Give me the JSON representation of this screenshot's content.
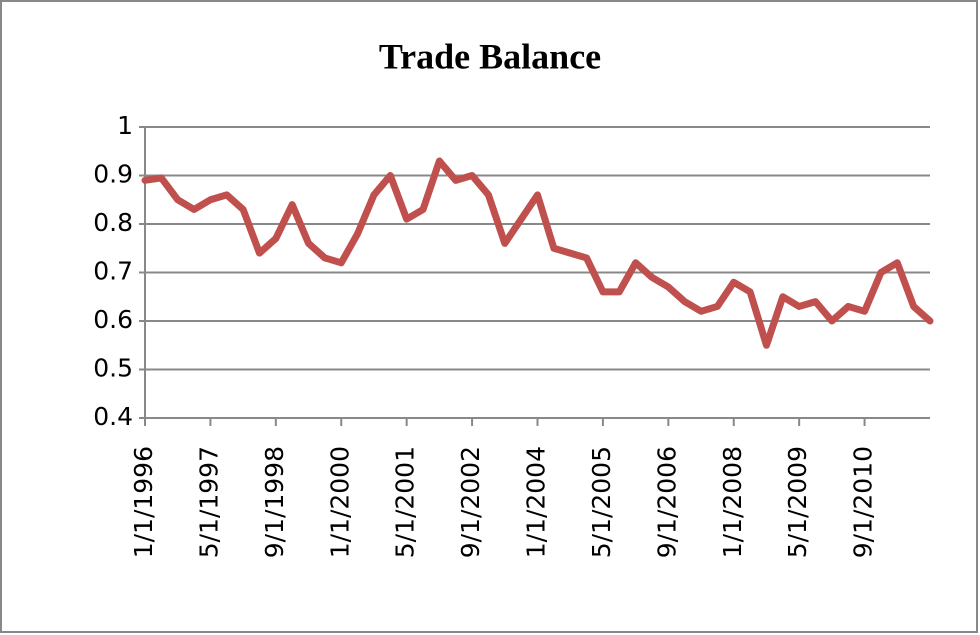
{
  "chart_data": {
    "type": "line",
    "title": "Trade Balance",
    "categories": [
      "1/1/1996",
      null,
      null,
      null,
      "5/1/1997",
      null,
      null,
      null,
      "9/1/1998",
      null,
      null,
      null,
      "1/1/2000",
      null,
      null,
      null,
      "5/1/2001",
      null,
      null,
      null,
      "9/1/2002",
      null,
      null,
      null,
      "1/1/2004",
      null,
      null,
      null,
      "5/1/2005",
      null,
      null,
      null,
      "9/1/2006",
      null,
      null,
      null,
      "1/1/2008",
      null,
      null,
      null,
      "5/1/2009",
      null,
      null,
      null,
      "9/1/2010",
      null,
      null,
      null,
      null
    ],
    "values": [
      0.89,
      0.895,
      0.85,
      0.83,
      0.85,
      0.86,
      0.83,
      0.74,
      0.77,
      0.84,
      0.76,
      0.73,
      0.72,
      0.78,
      0.86,
      0.9,
      0.81,
      0.83,
      0.93,
      0.89,
      0.9,
      0.86,
      0.76,
      0.81,
      0.86,
      0.75,
      0.74,
      0.73,
      0.66,
      0.66,
      0.72,
      0.69,
      0.67,
      0.64,
      0.62,
      0.63,
      0.68,
      0.66,
      0.55,
      0.65,
      0.63,
      0.64,
      0.6,
      0.63,
      0.62,
      0.7,
      0.72,
      0.63,
      0.6
    ],
    "color": "#c0504d",
    "ylim": [
      0.4,
      1
    ],
    "yticks": [
      0.4,
      0.5,
      0.6,
      0.7,
      0.8,
      0.9,
      1
    ],
    "grid": true
  }
}
